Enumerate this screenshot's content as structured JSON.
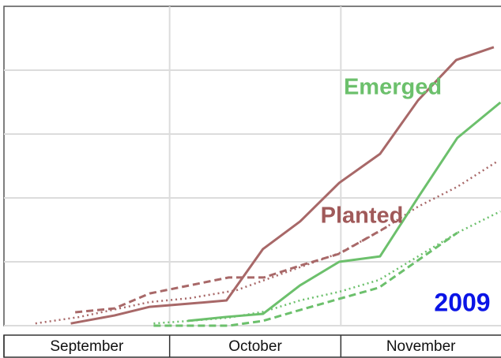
{
  "chart_data": {
    "type": "line",
    "xlim": [
      0,
      90
    ],
    "xticks": [
      0,
      30,
      61
    ],
    "months": [
      "September",
      "October",
      "November"
    ],
    "ylim": [
      0,
      100
    ],
    "yticks": [
      0,
      20,
      40,
      60,
      80
    ],
    "grid": true,
    "annotations": [
      {
        "text": "Emerged",
        "color": "#6cc06c"
      },
      {
        "text": "Planted",
        "color": "#a05a5a"
      },
      {
        "text": "2009",
        "color": "#0a14e6"
      }
    ],
    "series": [
      {
        "color": "#a86868",
        "dash": "solid",
        "x": [
          12.1,
          20,
          26.4,
          33.6,
          40.3,
          46.9,
          53.6,
          60.7,
          68.1,
          75,
          81.9,
          88.7
        ],
        "values": [
          0.7,
          3.2,
          5.9,
          6.9,
          7.9,
          24,
          32.6,
          44.7,
          53.8,
          70.6,
          83.2,
          87.2
        ]
      },
      {
        "color": "#a86868",
        "dash": "dashed",
        "x": [
          12.9,
          20,
          26.4,
          33.6,
          40.7,
          47.1,
          53.6,
          60.7,
          69.3
        ],
        "values": [
          4.2,
          5.4,
          10.1,
          12.6,
          15.1,
          15.1,
          18.8,
          22.5,
          30.9
        ]
      },
      {
        "color": "#a86868",
        "dash": "dotted",
        "x": [
          5.7,
          13.6,
          26.4,
          33.6,
          42.1,
          53.6,
          60.7,
          67.9,
          75,
          82.1,
          89.3
        ],
        "values": [
          0.7,
          2.7,
          7.4,
          8.6,
          11.1,
          18.3,
          22.7,
          29.4,
          37.3,
          43.5,
          51.4
        ]
      },
      {
        "color": "#6cc06c",
        "dash": "solid",
        "x": [
          33.3,
          40,
          46.9,
          53.6,
          60.7,
          68.1,
          75,
          82.1,
          89.9
        ],
        "values": [
          1.5,
          2.7,
          3.7,
          12.6,
          20,
          21.7,
          40.2,
          58.8,
          69.9
        ]
      },
      {
        "color": "#6cc06c",
        "dash": "dashed",
        "x": [
          27.1,
          33.6,
          40.7,
          46.9,
          53.6,
          60.7,
          67.9,
          75,
          82.1
        ],
        "values": [
          0,
          0,
          0,
          1.5,
          4.9,
          8.4,
          11.9,
          20.5,
          29.1
        ]
      },
      {
        "color": "#6cc06c",
        "dash": "dotted",
        "x": [
          27.1,
          33.6,
          40.7,
          47.1,
          53.6,
          60.7,
          67.9,
          75,
          82.1,
          89.9
        ],
        "values": [
          0.7,
          1.5,
          2.5,
          4.4,
          7.9,
          10.6,
          14.3,
          21.7,
          29.1,
          35.8
        ]
      }
    ]
  }
}
